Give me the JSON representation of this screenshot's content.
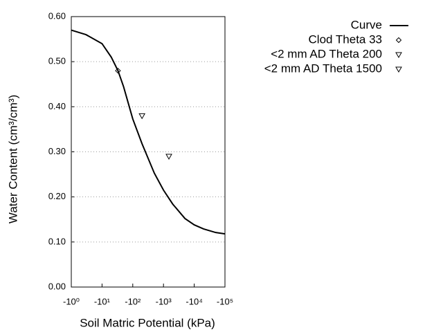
{
  "chart_data": {
    "type": "line",
    "xlabel": "Soil Matric Potential (kPa)",
    "ylabel": "Water Content (cm³/cm³)",
    "xscale": "log",
    "xlim": [
      -1,
      -100000
    ],
    "xticks": [
      {
        "value": -1,
        "label": "-10⁰"
      },
      {
        "value": -10,
        "label": "-10¹"
      },
      {
        "value": -100,
        "label": "-10²"
      },
      {
        "value": -1000,
        "label": "-10³"
      },
      {
        "value": -10000,
        "label": "-10⁴"
      },
      {
        "value": -100000,
        "label": "-10⁵"
      }
    ],
    "ylim": [
      0,
      0.6
    ],
    "yticks": [
      {
        "value": 0,
        "label": "0.00"
      },
      {
        "value": 0.1,
        "label": "0.10"
      },
      {
        "value": 0.2,
        "label": "0.20"
      },
      {
        "value": 0.3,
        "label": "0.30"
      },
      {
        "value": 0.4,
        "label": "0.40"
      },
      {
        "value": 0.5,
        "label": "0.50"
      },
      {
        "value": 0.6,
        "label": "0.60"
      }
    ],
    "grid": true,
    "legend": "top-right",
    "series": [
      {
        "name": "Curve",
        "color": "#000000",
        "marker": "line",
        "x": [
          -1,
          -3,
          -10,
          -20,
          -33,
          -50,
          -100,
          -200,
          -500,
          -1000,
          -2000,
          -5000,
          -10000,
          -20000,
          -50000,
          -100000
        ],
        "values": [
          0.57,
          0.56,
          0.54,
          0.51,
          0.48,
          0.445,
          0.373,
          0.318,
          0.253,
          0.215,
          0.184,
          0.152,
          0.138,
          0.129,
          0.121,
          0.118
        ]
      },
      {
        "name": "Clod Theta 33",
        "color": "#000000",
        "marker": "diamond",
        "x": [
          -33
        ],
        "values": [
          0.48
        ]
      },
      {
        "name": "<2 mm AD Theta 200",
        "color": "#000000",
        "marker": "triangle",
        "x": [
          -200
        ],
        "values": [
          0.38
        ]
      },
      {
        "name": "<2 mm AD Theta 1500",
        "color": "#000000",
        "marker": "triangle",
        "x": [
          -1500
        ],
        "values": [
          0.29
        ]
      }
    ]
  }
}
